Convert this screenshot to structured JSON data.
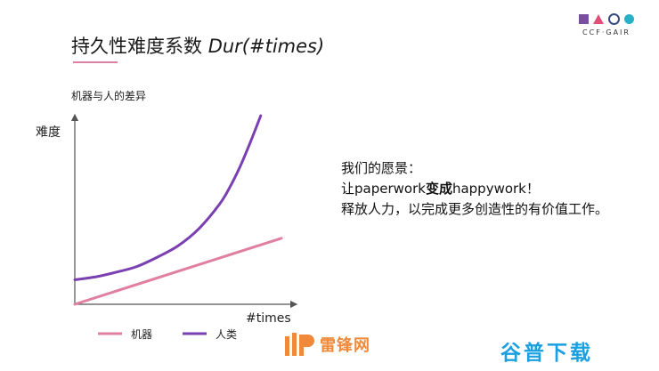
{
  "slide": {
    "title_cn": "持久性难度系数",
    "title_en": "Dur(#times)",
    "subtitle": "机器与人的差异",
    "logo_text": "CCF·GAIR"
  },
  "wish": {
    "line1": "我们的愿景：",
    "line2_pre": "让paperwork",
    "line2_bold": "变成",
    "line2_post": "happywork！",
    "line3": "释放人力，以完成更多创造性的有价值工作。"
  },
  "watermarks": {
    "middle": "雷锋网",
    "right": "谷普下载"
  },
  "colors": {
    "machine": "#e07fa0",
    "human": "#7a3fb0",
    "axis": "#555555",
    "title_accent": "#e07fa0"
  },
  "chart_data": {
    "type": "line",
    "title": "",
    "xlabel": "#times",
    "ylabel": "难度",
    "xlim": [
      0,
      10
    ],
    "ylim": [
      0,
      10
    ],
    "grid": false,
    "legend_placement": "bottom",
    "series": [
      {
        "name": "机器",
        "color": "#e07fa0",
        "x": [
          0,
          10
        ],
        "y": [
          0,
          3.5
        ]
      },
      {
        "name": "人类",
        "color": "#7a3fb0",
        "x": [
          0,
          1,
          2,
          3,
          4,
          5,
          6,
          7,
          7.5,
          8,
          8.5,
          9
        ],
        "y": [
          1.3,
          1.45,
          1.7,
          2.0,
          2.5,
          3.1,
          4.0,
          5.3,
          6.2,
          7.3,
          8.6,
          10.0
        ]
      }
    ]
  }
}
